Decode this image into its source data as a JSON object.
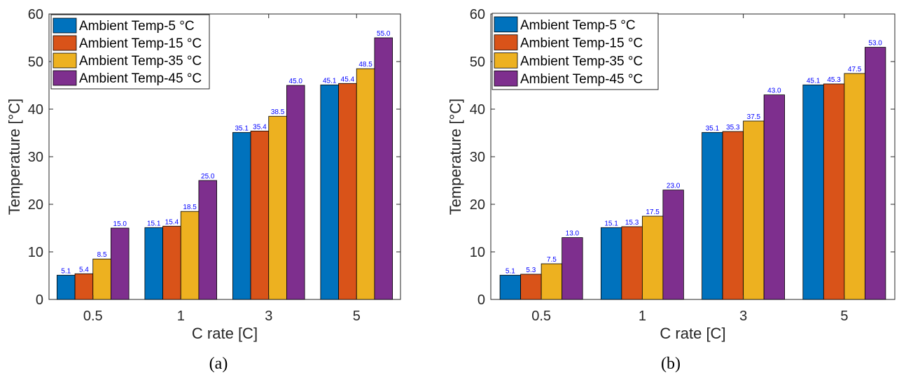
{
  "chart_data": [
    {
      "type": "bar",
      "panel_label": "(a)",
      "categories": [
        "0.5",
        "1",
        "3",
        "5"
      ],
      "series": [
        {
          "name": "Ambient Temp-5 °C",
          "color": "#0072BD",
          "values": [
            5.1,
            15.1,
            35.1,
            45.1
          ]
        },
        {
          "name": "Ambient Temp-15 °C",
          "color": "#D95319",
          "values": [
            5.4,
            15.4,
            35.4,
            45.4
          ]
        },
        {
          "name": "Ambient Temp-35 °C",
          "color": "#EDB120",
          "values": [
            8.5,
            18.5,
            38.5,
            48.5
          ]
        },
        {
          "name": "Ambient Temp-45 °C",
          "color": "#7E2F8E",
          "values": [
            15.0,
            25.0,
            45.0,
            55.0
          ]
        }
      ],
      "data_labels": [
        [
          "5.1",
          "15.1",
          "35.1",
          "45.1"
        ],
        [
          "5.4",
          "15.4",
          "35.4",
          "45.4"
        ],
        [
          "8.5",
          "18.5",
          "38.5",
          "48.5"
        ],
        [
          "15.0",
          "25.0",
          "45.0",
          "55.0"
        ]
      ],
      "xlabel": "C rate [C]",
      "ylabel": "Temperature [°C]",
      "ylim": [
        0,
        60
      ],
      "yticks": [
        "0",
        "10",
        "20",
        "30",
        "40",
        "50",
        "60"
      ],
      "grid": false,
      "legend_position": "top-left"
    },
    {
      "type": "bar",
      "panel_label": "(b)",
      "categories": [
        "0.5",
        "1",
        "3",
        "5"
      ],
      "series": [
        {
          "name": "Ambient Temp-5 °C",
          "color": "#0072BD",
          "values": [
            5.1,
            15.1,
            35.1,
            45.1
          ]
        },
        {
          "name": "Ambient Temp-15 °C",
          "color": "#D95319",
          "values": [
            5.3,
            15.3,
            35.3,
            45.3
          ]
        },
        {
          "name": "Ambient Temp-35 °C",
          "color": "#EDB120",
          "values": [
            7.5,
            17.5,
            37.5,
            47.5
          ]
        },
        {
          "name": "Ambient Temp-45 °C",
          "color": "#7E2F8E",
          "values": [
            13.0,
            23.0,
            43.0,
            53.0
          ]
        }
      ],
      "data_labels": [
        [
          "5.1",
          "15.1",
          "35.1",
          "45.1"
        ],
        [
          "5.3",
          "15.3",
          "35.3",
          "45.3"
        ],
        [
          "7.5",
          "17.5",
          "37.5",
          "47.5"
        ],
        [
          "13.0",
          "23.0",
          "43.0",
          "53.0"
        ]
      ],
      "xlabel": "C rate [C]",
      "ylabel": "Temperature [°C]",
      "ylim": [
        0,
        60
      ],
      "yticks": [
        "0",
        "10",
        "20",
        "30",
        "40",
        "50",
        "60"
      ],
      "grid": false,
      "legend_position": "top-left"
    }
  ],
  "colors": {
    "axis": "#262626",
    "data_label": "#0000ff"
  }
}
